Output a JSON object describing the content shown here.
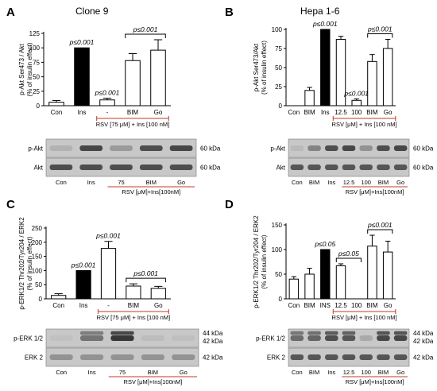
{
  "chart_data": [
    {
      "panel_letter": "A",
      "title": "Clone 9",
      "type": "bar",
      "ylabel_lines": [
        "p-Akt Ser473 / Akt",
        "(% of insulin effect)"
      ],
      "ylim": [
        0,
        125
      ],
      "yticks": [
        0,
        25,
        50,
        75,
        100,
        125
      ],
      "categories": [
        "Con",
        "Ins",
        "-",
        "BIM",
        "Go"
      ],
      "values": [
        6,
        100,
        10,
        78,
        96
      ],
      "errors": [
        3,
        0,
        3,
        12,
        18
      ],
      "bar_fill": [
        "#ffffff",
        "#000000",
        "#ffffff",
        "#ffffff",
        "#ffffff"
      ],
      "annotations": [
        {
          "text": "p≤0.001",
          "bar": 1
        },
        {
          "text": "p≤0.001",
          "bar": 2
        },
        {
          "text": "p≤0.001",
          "bracket": [
            3,
            4
          ]
        }
      ],
      "treatment_label": "RSV [75 μM] + Ins [100 nM]",
      "treatment_span": [
        2,
        4
      ],
      "blot": {
        "rows": [
          {
            "label": "p-Akt",
            "kda": "60 kDa",
            "intensity": [
              0.15,
              0.85,
              0.3,
              0.8,
              0.85
            ]
          },
          {
            "label": "Akt",
            "kda": "60 kDa",
            "intensity": [
              0.8,
              0.8,
              0.8,
              0.8,
              0.8
            ]
          }
        ],
        "lane_labels": [
          "Con",
          "Ins",
          "75",
          "BIM",
          "Go"
        ],
        "treatment_label": "RSV [μM]+Ins[100nM]",
        "treatment_span": [
          2,
          4
        ]
      }
    },
    {
      "panel_letter": "B",
      "title": "Hepa 1-6",
      "type": "bar",
      "ylabel_lines": [
        "p-Akt Ser473/Akt",
        "(% of insulin effect)"
      ],
      "ylim": [
        0,
        100
      ],
      "yticks": [
        0,
        25,
        50,
        75,
        100
      ],
      "categories": [
        "Con",
        "BIM",
        "Ins",
        "12.5",
        "100",
        "BIM",
        "Go"
      ],
      "values": [
        0,
        20,
        100,
        87,
        7,
        58,
        75
      ],
      "errors": [
        0,
        4,
        0,
        4,
        2,
        9,
        12
      ],
      "bar_fill": [
        "#ffffff",
        "#ffffff",
        "#000000",
        "#ffffff",
        "#ffffff",
        "#ffffff",
        "#ffffff"
      ],
      "annotations": [
        {
          "text": "p≤0.001",
          "bar": 2
        },
        {
          "text": "p≤0.001",
          "bar": 4
        },
        {
          "text": "p≤0.001",
          "bracket": [
            5,
            6
          ]
        }
      ],
      "treatment_label": "RSV [μM] + Ins [100 nM]",
      "treatment_span": [
        3,
        6
      ],
      "blot": {
        "rows": [
          {
            "label": "p-Akt",
            "kda": "60 kDa",
            "intensity": [
              0.1,
              0.45,
              0.8,
              0.85,
              0.35,
              0.8,
              0.85
            ]
          },
          {
            "label": "Akt",
            "kda": "60 kDa",
            "intensity": [
              0.75,
              0.75,
              0.75,
              0.75,
              0.75,
              0.75,
              0.75
            ]
          }
        ],
        "lane_labels": [
          "Con",
          "BIM",
          "Ins",
          "12.5",
          "100",
          "BIM",
          "Go"
        ],
        "treatment_label": "RSV [μM]+Ins[100nM]",
        "treatment_span": [
          3,
          6
        ]
      }
    },
    {
      "panel_letter": "C",
      "title": "",
      "type": "bar",
      "ylabel_lines": [
        "p-ERK1/2 Thr202/Tyr204 / ERK2",
        "(% of insulin effect)"
      ],
      "ylim": [
        0,
        250
      ],
      "yticks": [
        0,
        50,
        100,
        150,
        200,
        250
      ],
      "categories": [
        "Con",
        "Ins",
        "-",
        "BIM",
        "Go"
      ],
      "values": [
        12,
        100,
        178,
        45,
        37
      ],
      "errors": [
        6,
        0,
        25,
        8,
        7
      ],
      "bar_fill": [
        "#ffffff",
        "#000000",
        "#ffffff",
        "#ffffff",
        "#ffffff"
      ],
      "annotations": [
        {
          "text": "p≤0.001",
          "bar": 1
        },
        {
          "text": "p≤0.001",
          "bar": 2
        },
        {
          "text": "p≤0.001",
          "bracket": [
            3,
            4
          ]
        }
      ],
      "treatment_label": "RSV [75 μM] + Ins [100 nM]",
      "treatment_span": [
        2,
        4
      ],
      "blot": {
        "rows": [
          {
            "label": "p-ERK 1/2",
            "kda": "44 kDa",
            "kda2": "42 kDa",
            "intensity": [
              0.05,
              0.55,
              0.95,
              0.08,
              0.06
            ]
          },
          {
            "label": "ERK 2",
            "kda": "42 kDa",
            "intensity": [
              0.35,
              0.35,
              0.35,
              0.35,
              0.35
            ]
          }
        ],
        "lane_labels": [
          "Con",
          "Ins",
          "75",
          "BIM",
          "Go"
        ],
        "treatment_label": "RSV [μM]+Ins[100nM]",
        "treatment_span": [
          2,
          4
        ]
      }
    },
    {
      "panel_letter": "D",
      "title": "",
      "type": "bar",
      "ylabel_lines": [
        "p-ERK1/2 Thr202/Tyr204 / ERK2",
        "(% of insulin effect)"
      ],
      "ylim": [
        0,
        150
      ],
      "yticks": [
        0,
        50,
        100,
        150
      ],
      "categories": [
        "Con",
        "BIM",
        "INS",
        "12.5",
        "100",
        "BIM",
        "Go"
      ],
      "values": [
        40,
        50,
        100,
        67,
        0,
        107,
        95
      ],
      "errors": [
        5,
        12,
        0,
        4,
        0,
        22,
        22
      ],
      "bar_fill": [
        "#ffffff",
        "#ffffff",
        "#000000",
        "#ffffff",
        "#ffffff",
        "#ffffff",
        "#ffffff"
      ],
      "annotations": [
        {
          "text": "p≤0.05",
          "bar": 2
        },
        {
          "text": "p≤0.05",
          "bracket": [
            3,
            4
          ]
        },
        {
          "text": "p≤0.001",
          "bracket": [
            5,
            6
          ]
        }
      ],
      "treatment_label": "RSV [μM] + Ins [100 nM]",
      "treatment_span": [
        3,
        6
      ],
      "blot": {
        "rows": [
          {
            "label": "p-ERK 1/2",
            "kda": "44 kDa",
            "kda2": "42 kDa",
            "intensity": [
              0.6,
              0.65,
              0.8,
              0.75,
              0.2,
              0.85,
              0.85
            ]
          },
          {
            "label": "ERK 2",
            "kda": "42 kDa",
            "intensity": [
              0.75,
              0.75,
              0.75,
              0.75,
              0.75,
              0.75,
              0.75
            ]
          }
        ],
        "lane_labels": [
          "Con",
          "BIM",
          "Ins",
          "12.5",
          "100",
          "BIM",
          "Go"
        ],
        "treatment_label": "RSV [μM]+Ins[100nM]",
        "treatment_span": [
          3,
          6
        ]
      }
    }
  ]
}
